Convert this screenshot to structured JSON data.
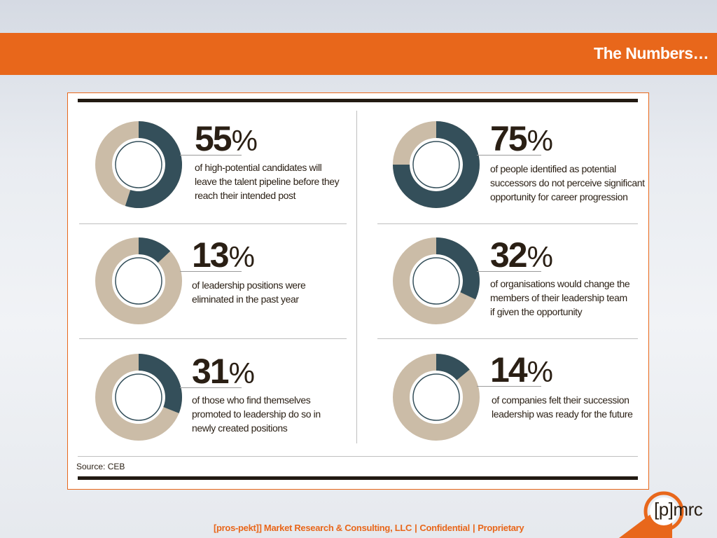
{
  "header": {
    "title": "The Numbers…"
  },
  "colors": {
    "accent": "#e8671b",
    "dark_segment": "#344f5a",
    "light_segment": "#cbbca7",
    "text": "#2a1f14"
  },
  "chart_data": {
    "type": "pie",
    "variant": "donut",
    "items": [
      {
        "value": 55,
        "sign": "%",
        "lines": [
          "of high-potential candidates will",
          "leave the talent pipeline before they",
          "reach their intended post"
        ]
      },
      {
        "value": 75,
        "sign": "%",
        "lines": [
          "of people identified as potential",
          "successors do not perceive significant",
          "opportunity for career progression"
        ]
      },
      {
        "value": 13,
        "sign": "%",
        "lines": [
          "of leadership positions were",
          "eliminated in the past year"
        ]
      },
      {
        "value": 32,
        "sign": "%",
        "lines": [
          "of organisations would change the",
          "members of their leadership team",
          "if given the opportunity"
        ]
      },
      {
        "value": 31,
        "sign": "%",
        "lines": [
          "of those who find themselves",
          "promoted to leadership do so in",
          "newly created positions"
        ]
      },
      {
        "value": 14,
        "sign": "%",
        "lines": [
          "of companies felt their succession",
          "leadership was ready for the future"
        ]
      }
    ],
    "source": "Source:  CEB"
  },
  "footer": {
    "company": "[pros-pekt]] Market Research & Consulting, LLC",
    "sep": "|",
    "confidential": "Confidential",
    "proprietary": "Proprietary"
  },
  "logo": {
    "text": "[p]mrc",
    "icon": "pmrc-logo-icon"
  }
}
